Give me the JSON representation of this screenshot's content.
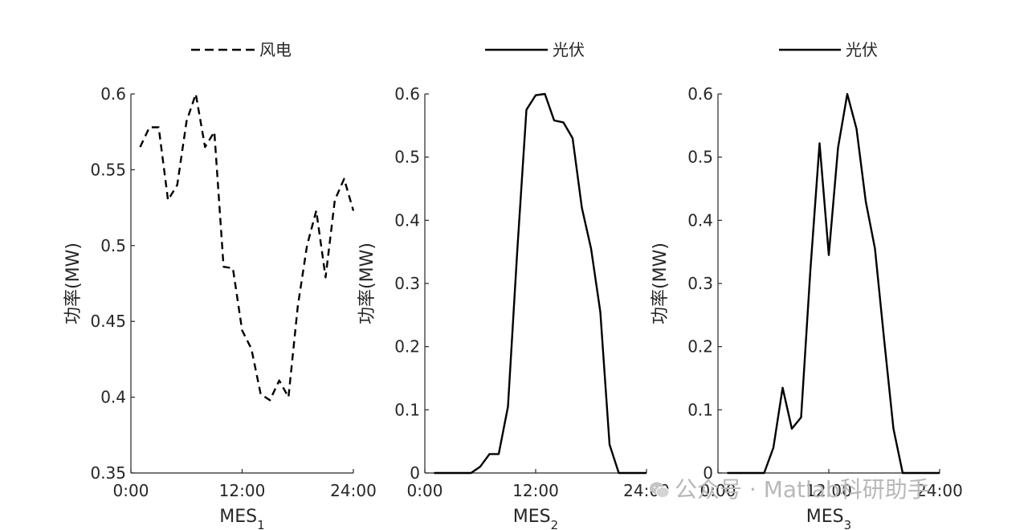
{
  "chart_data": [
    {
      "type": "line",
      "xlabel": "MES",
      "xlabel_sub": "1",
      "ylabel": "功率(MW)",
      "ylim": [
        0.35,
        0.6
      ],
      "yticks": [
        0.35,
        0.4,
        0.45,
        0.5,
        0.55,
        0.6
      ],
      "ytick_labels": [
        "0.35",
        "0.4",
        "0.45",
        "0.5",
        "0.55",
        "0.6"
      ],
      "xlim": [
        0,
        24
      ],
      "xticks": [
        0,
        12,
        24
      ],
      "xtick_labels": [
        "0:00",
        "12:00",
        "24:00"
      ],
      "legend_position": "top",
      "series": [
        {
          "name": "风电",
          "style": "dashed",
          "color": "#000000",
          "x": [
            1,
            2,
            3,
            4,
            5,
            6,
            7,
            8,
            9,
            10,
            11,
            12,
            13,
            14,
            15,
            16,
            17,
            18,
            19,
            20,
            21,
            22,
            23,
            24
          ],
          "y": [
            0.565,
            0.578,
            0.578,
            0.53,
            0.54,
            0.582,
            0.6,
            0.565,
            0.575,
            0.486,
            0.485,
            0.444,
            0.432,
            0.402,
            0.398,
            0.411,
            0.4,
            0.46,
            0.5,
            0.523,
            0.479,
            0.53,
            0.544,
            0.523
          ]
        }
      ]
    },
    {
      "type": "line",
      "xlabel": "MES",
      "xlabel_sub": "2",
      "ylabel": "功率(MW)",
      "ylim": [
        0,
        0.6
      ],
      "yticks": [
        0,
        0.1,
        0.2,
        0.3,
        0.4,
        0.5,
        0.6
      ],
      "ytick_labels": [
        "0",
        "0.1",
        "0.2",
        "0.3",
        "0.4",
        "0.5",
        "0.6"
      ],
      "xlim": [
        0,
        24
      ],
      "xticks": [
        0,
        12,
        24
      ],
      "xtick_labels": [
        "0:00",
        "12:00",
        "24:00"
      ],
      "legend_position": "top",
      "series": [
        {
          "name": "光伏",
          "style": "solid",
          "color": "#000000",
          "x": [
            1,
            2,
            3,
            4,
            5,
            6,
            7,
            8,
            9,
            10,
            11,
            12,
            13,
            14,
            15,
            16,
            17,
            18,
            19,
            20,
            21,
            22,
            23,
            24
          ],
          "y": [
            0,
            0,
            0,
            0,
            0,
            0.01,
            0.03,
            0.03,
            0.105,
            0.35,
            0.575,
            0.598,
            0.6,
            0.558,
            0.555,
            0.53,
            0.42,
            0.355,
            0.255,
            0.045,
            0,
            0,
            0,
            0
          ]
        }
      ]
    },
    {
      "type": "line",
      "xlabel": "MES",
      "xlabel_sub": "3",
      "ylabel": "功率(MW)",
      "ylim": [
        0,
        0.6
      ],
      "yticks": [
        0,
        0.1,
        0.2,
        0.3,
        0.4,
        0.5,
        0.6
      ],
      "ytick_labels": [
        "0",
        "0.1",
        "0.2",
        "0.3",
        "0.4",
        "0.5",
        "0.6"
      ],
      "xlim": [
        0,
        24
      ],
      "xticks": [
        0,
        12,
        24
      ],
      "xtick_labels": [
        "0:00",
        "12:00",
        "24:00"
      ],
      "legend_position": "top",
      "series": [
        {
          "name": "光伏",
          "style": "solid",
          "color": "#000000",
          "x": [
            1,
            2,
            3,
            4,
            5,
            6,
            7,
            8,
            9,
            10,
            11,
            12,
            13,
            14,
            15,
            16,
            17,
            18,
            19,
            20,
            21,
            22,
            23,
            24
          ],
          "y": [
            0,
            0,
            0,
            0,
            0,
            0.04,
            0.135,
            0.07,
            0.088,
            0.32,
            0.522,
            0.345,
            0.515,
            0.6,
            0.545,
            0.43,
            0.355,
            0.21,
            0.07,
            0,
            0,
            0,
            0,
            0
          ]
        }
      ]
    }
  ],
  "watermark": {
    "text": "公众号 · Matlab科研助手",
    "icon": "wechat-icon"
  }
}
